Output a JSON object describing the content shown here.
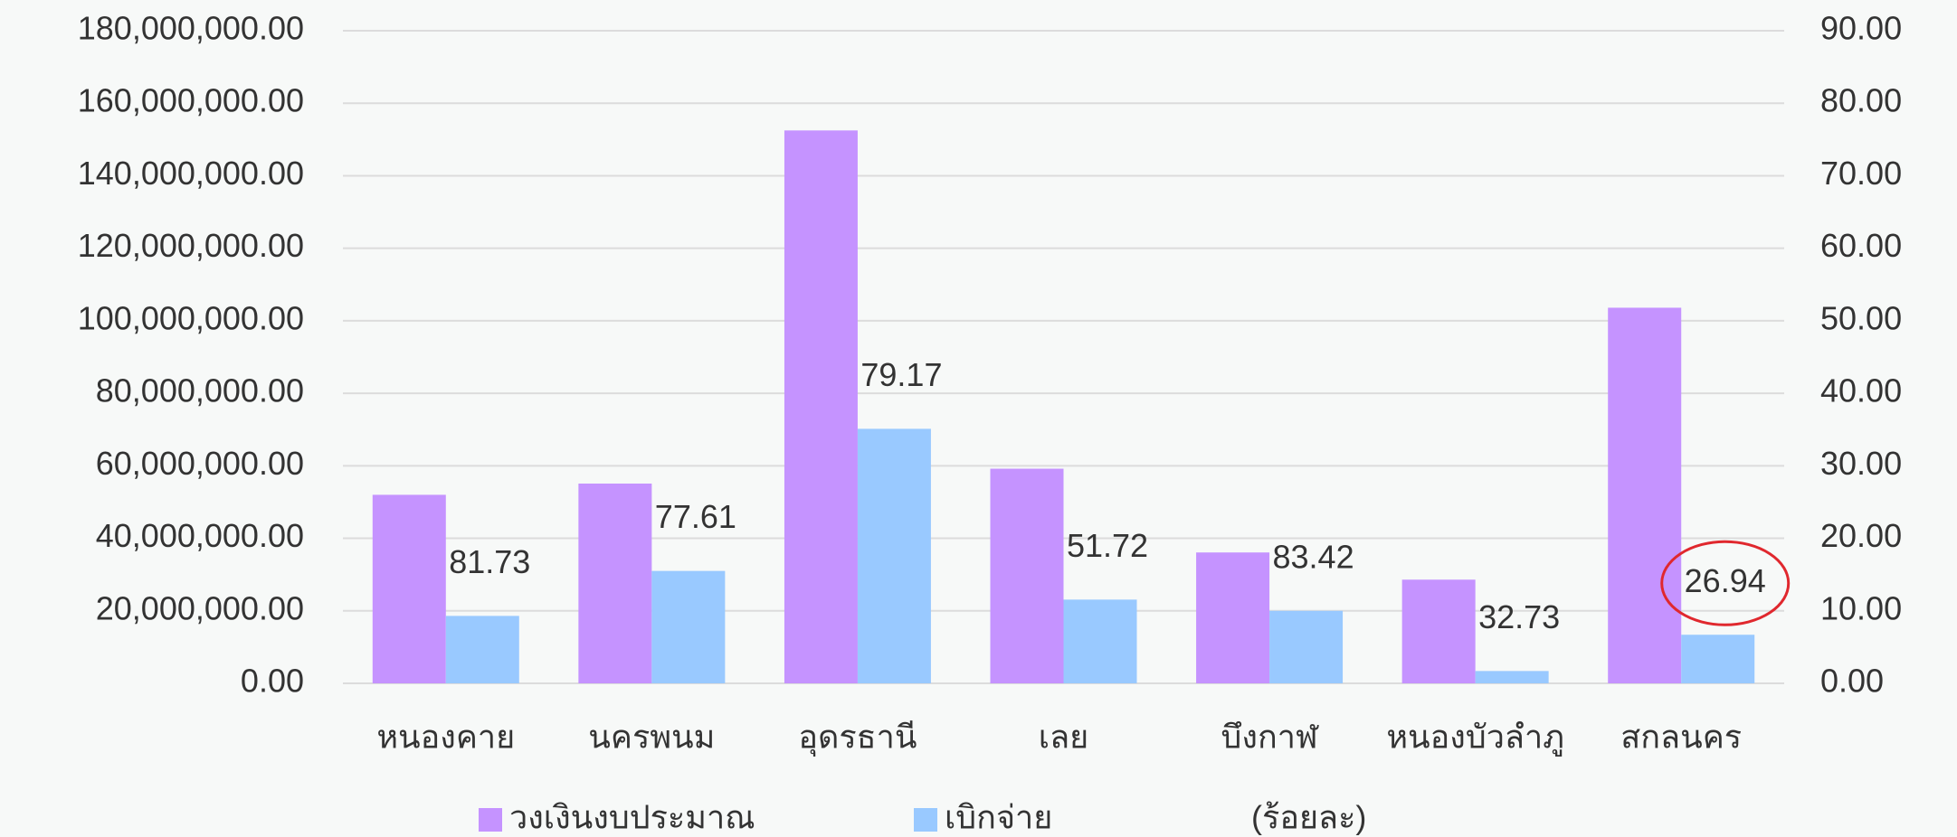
{
  "chart_data": {
    "type": "bar",
    "categories": [
      "หนองคาย",
      "นครพนม",
      "อุดรธานี",
      "เลย",
      "บึงกาฬ",
      "หนองบัวลำภู",
      "สกลนคร"
    ],
    "series": [
      {
        "name": "วงเงินงบประมาณ",
        "color": "#c593ff",
        "values": [
          52000000,
          55100000,
          152500000,
          59200000,
          36100000,
          28600000,
          103600000
        ]
      },
      {
        "name": "เบิกจ่าย",
        "color": "#99c9ff",
        "values": [
          18600000,
          31000000,
          70200000,
          23100000,
          20000000,
          3400000,
          13400000
        ]
      },
      {
        "name": "(ร้อยละ)",
        "axis": "y2",
        "values": [
          81.73,
          77.61,
          79.17,
          51.72,
          83.42,
          32.73,
          26.94
        ]
      }
    ],
    "ylim": [
      0,
      180000000
    ],
    "yticks": [
      {
        "value": 0,
        "label": "0.00"
      },
      {
        "value": 20000000,
        "label": "20,000,000.00"
      },
      {
        "value": 40000000,
        "label": "40,000,000.00"
      },
      {
        "value": 60000000,
        "label": "60,000,000.00"
      },
      {
        "value": 80000000,
        "label": "80,000,000.00"
      },
      {
        "value": 100000000,
        "label": "100,000,000.00"
      },
      {
        "value": 120000000,
        "label": "120,000,000.00"
      },
      {
        "value": 140000000,
        "label": "140,000,000.00"
      },
      {
        "value": 160000000,
        "label": "160,000,000.00"
      },
      {
        "value": 180000000,
        "label": "180,000,000.00"
      }
    ],
    "y2lim": [
      0,
      90
    ],
    "y2ticks": [
      {
        "value": 0,
        "label": "0.00"
      },
      {
        "value": 10,
        "label": "10.00"
      },
      {
        "value": 20,
        "label": "20.00"
      },
      {
        "value": 30,
        "label": "30.00"
      },
      {
        "value": 40,
        "label": "40.00"
      },
      {
        "value": 50,
        "label": "50.00"
      },
      {
        "value": 60,
        "label": "60.00"
      },
      {
        "value": 70,
        "label": "70.00"
      },
      {
        "value": 80,
        "label": "80.00"
      },
      {
        "value": 90,
        "label": "90.00"
      }
    ],
    "grid": true,
    "legend": "bottom"
  }
}
